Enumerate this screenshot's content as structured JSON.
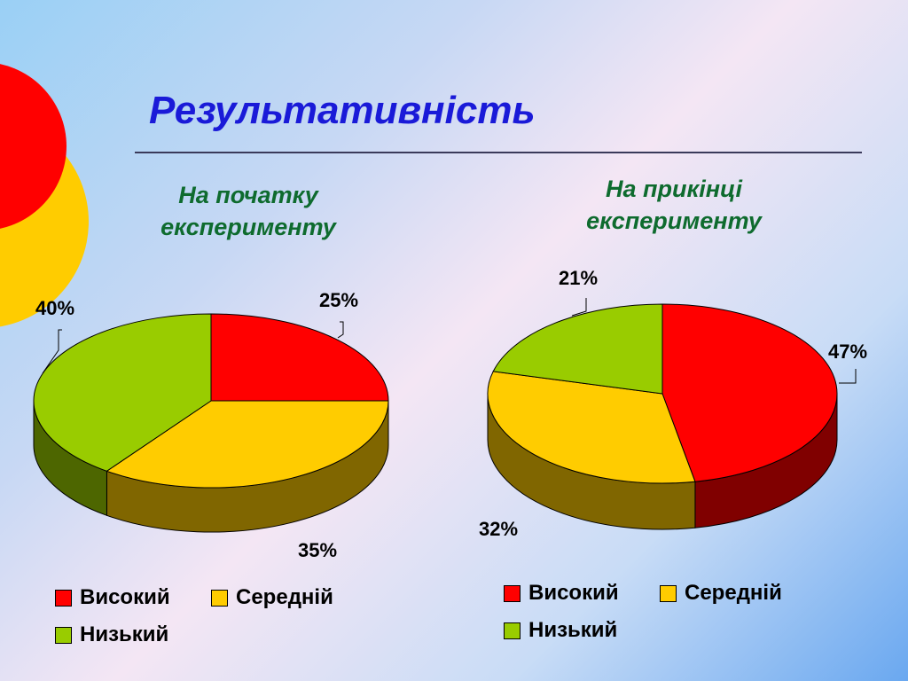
{
  "title": "Результативність",
  "colors": {
    "high": "#ff0000",
    "medium": "#ffcc00",
    "low": "#99cc00"
  },
  "legend": [
    {
      "label": "Високий",
      "color": "#ff0000"
    },
    {
      "label": "Середній",
      "color": "#ffcc00"
    },
    {
      "label": "Низький",
      "color": "#99cc00"
    }
  ],
  "chart_data": [
    {
      "type": "pie",
      "title": "На початку\nексперименту",
      "categories": [
        "Високий",
        "Середній",
        "Низький"
      ],
      "values": [
        25,
        35,
        40
      ],
      "labels": [
        "25%",
        "35%",
        "40%"
      ],
      "colors": [
        "#ff0000",
        "#ffcc00",
        "#99cc00"
      ],
      "legend_position": "bottom"
    },
    {
      "type": "pie",
      "title": "На прикінці\nексперименту",
      "categories": [
        "Високий",
        "Середній",
        "Низький"
      ],
      "values": [
        47,
        32,
        21
      ],
      "labels": [
        "47%",
        "32%",
        "21%"
      ],
      "colors": [
        "#ff0000",
        "#ffcc00",
        "#99cc00"
      ],
      "legend_position": "bottom"
    }
  ]
}
